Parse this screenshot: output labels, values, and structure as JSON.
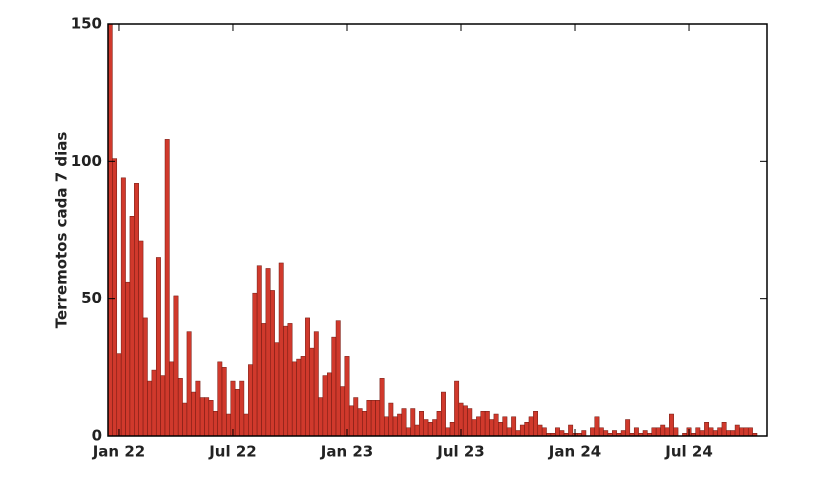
{
  "chart_data": {
    "type": "bar",
    "y_label": "Terremotos cada 7 dias",
    "categories": [
      null,
      null,
      "Jan 22",
      null,
      null,
      null,
      null,
      null,
      null,
      null,
      null,
      null,
      null,
      null,
      null,
      null,
      null,
      null,
      null,
      null,
      null,
      null,
      null,
      null,
      null,
      null,
      null,
      null,
      "Jul 22",
      null,
      null,
      null,
      null,
      null,
      null,
      null,
      null,
      null,
      null,
      null,
      null,
      null,
      null,
      null,
      null,
      null,
      null,
      null,
      null,
      null,
      null,
      null,
      null,
      null,
      "Jan 23",
      null,
      null,
      null,
      null,
      null,
      null,
      null,
      null,
      null,
      null,
      null,
      null,
      null,
      null,
      null,
      null,
      null,
      null,
      null,
      null,
      null,
      null,
      null,
      null,
      null,
      "Jul 23",
      null,
      null,
      null,
      null,
      null,
      null,
      null,
      null,
      null,
      null,
      null,
      null,
      null,
      null,
      null,
      null,
      null,
      null,
      null,
      null,
      null,
      null,
      null,
      null,
      null,
      "Jan 24",
      null,
      null,
      null,
      null,
      null,
      null,
      null,
      null,
      null,
      null,
      null,
      null,
      null,
      null,
      null,
      null,
      null,
      null,
      null,
      null,
      null,
      null,
      null,
      null,
      null,
      "Jul 24",
      null,
      null,
      null,
      null,
      null,
      null,
      null,
      null,
      null,
      null,
      null,
      null,
      null,
      null,
      null
    ],
    "values": [
      150,
      101,
      30,
      94,
      56,
      80,
      92,
      71,
      43,
      20,
      24,
      65,
      22,
      108,
      27,
      51,
      21,
      12,
      38,
      16,
      20,
      14,
      14,
      13,
      9,
      27,
      25,
      8,
      20,
      17,
      20,
      8,
      26,
      52,
      62,
      41,
      61,
      53,
      34,
      63,
      40,
      41,
      27,
      28,
      29,
      43,
      32,
      38,
      14,
      22,
      23,
      36,
      42,
      18,
      29,
      11,
      14,
      10,
      9,
      13,
      13,
      13,
      21,
      7,
      12,
      7,
      8,
      10,
      3,
      10,
      4,
      9,
      6,
      5,
      6,
      9,
      16,
      3,
      5,
      20,
      12,
      11,
      10,
      6,
      7,
      9,
      9,
      6,
      8,
      5,
      7,
      3,
      7,
      2,
      4,
      5,
      7,
      9,
      4,
      3,
      1,
      1,
      3,
      2,
      1,
      4,
      1,
      1,
      2,
      0,
      3,
      7,
      3,
      2,
      1,
      2,
      1,
      2,
      6,
      1,
      3,
      1,
      2,
      1,
      3,
      3,
      4,
      3,
      8,
      3,
      0,
      1,
      3,
      1,
      3,
      2,
      5,
      3,
      2,
      3,
      5,
      2,
      2,
      4,
      3,
      3,
      3,
      1
    ],
    "color": "#d0392c",
    "ylim": [
      0,
      150
    ],
    "yticks": [
      0,
      50,
      100,
      150
    ]
  }
}
